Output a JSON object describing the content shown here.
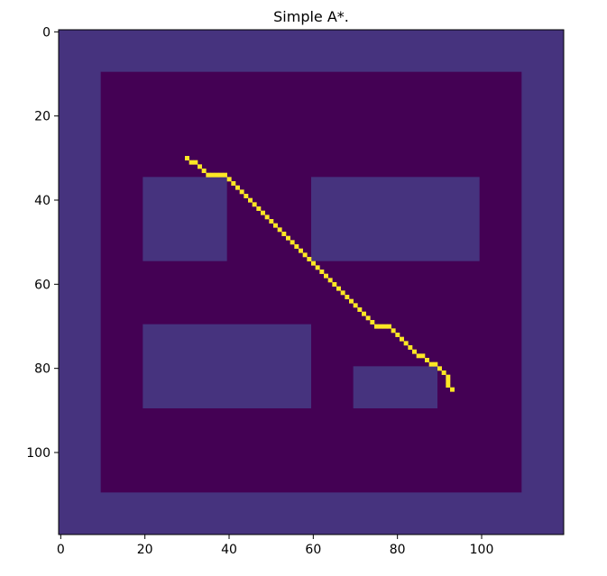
{
  "chart_data": {
    "type": "heatmap",
    "title": "Simple A*.",
    "xlabel": "",
    "ylabel": "",
    "grid": false,
    "xlim": [
      0,
      120
    ],
    "ylim": [
      120,
      0
    ],
    "x_ticks": [
      0,
      20,
      40,
      60,
      80,
      100
    ],
    "y_ticks": [
      0,
      20,
      40,
      60,
      80,
      100
    ],
    "colors": {
      "background": "#440154",
      "obstacle": "#46337e",
      "path": "#fde725",
      "axes": "#000000"
    },
    "boundary": {
      "outer": [
        0,
        0,
        120,
        120
      ],
      "inner": [
        10,
        10,
        110,
        110
      ]
    },
    "obstacles": [
      {
        "x": [
          20,
          40
        ],
        "y": [
          35,
          55
        ]
      },
      {
        "x": [
          60,
          100
        ],
        "y": [
          35,
          55
        ]
      },
      {
        "x": [
          20,
          60
        ],
        "y": [
          70,
          90
        ]
      },
      {
        "x": [
          70,
          90
        ],
        "y": [
          80,
          90
        ]
      }
    ],
    "path": [
      [
        30,
        30
      ],
      [
        31,
        31
      ],
      [
        32,
        31
      ],
      [
        33,
        32
      ],
      [
        34,
        33
      ],
      [
        35,
        34
      ],
      [
        36,
        34
      ],
      [
        37,
        34
      ],
      [
        38,
        34
      ],
      [
        39,
        34
      ],
      [
        40,
        35
      ],
      [
        41,
        36
      ],
      [
        42,
        37
      ],
      [
        43,
        38
      ],
      [
        44,
        39
      ],
      [
        45,
        40
      ],
      [
        46,
        41
      ],
      [
        47,
        42
      ],
      [
        48,
        43
      ],
      [
        49,
        44
      ],
      [
        50,
        45
      ],
      [
        51,
        46
      ],
      [
        52,
        47
      ],
      [
        53,
        48
      ],
      [
        54,
        49
      ],
      [
        55,
        50
      ],
      [
        56,
        51
      ],
      [
        57,
        52
      ],
      [
        58,
        53
      ],
      [
        59,
        54
      ],
      [
        60,
        55
      ],
      [
        61,
        56
      ],
      [
        62,
        57
      ],
      [
        63,
        58
      ],
      [
        64,
        59
      ],
      [
        65,
        60
      ],
      [
        66,
        61
      ],
      [
        67,
        62
      ],
      [
        68,
        63
      ],
      [
        69,
        64
      ],
      [
        70,
        65
      ],
      [
        71,
        66
      ],
      [
        72,
        67
      ],
      [
        73,
        68
      ],
      [
        74,
        69
      ],
      [
        75,
        70
      ],
      [
        76,
        70
      ],
      [
        77,
        70
      ],
      [
        78,
        70
      ],
      [
        79,
        71
      ],
      [
        80,
        72
      ],
      [
        81,
        73
      ],
      [
        82,
        74
      ],
      [
        83,
        75
      ],
      [
        84,
        76
      ],
      [
        85,
        77
      ],
      [
        86,
        77
      ],
      [
        87,
        78
      ],
      [
        88,
        79
      ],
      [
        89,
        79
      ],
      [
        90,
        80
      ],
      [
        91,
        81
      ],
      [
        92,
        82
      ],
      [
        92,
        83
      ],
      [
        92,
        84
      ],
      [
        93,
        85
      ]
    ]
  }
}
